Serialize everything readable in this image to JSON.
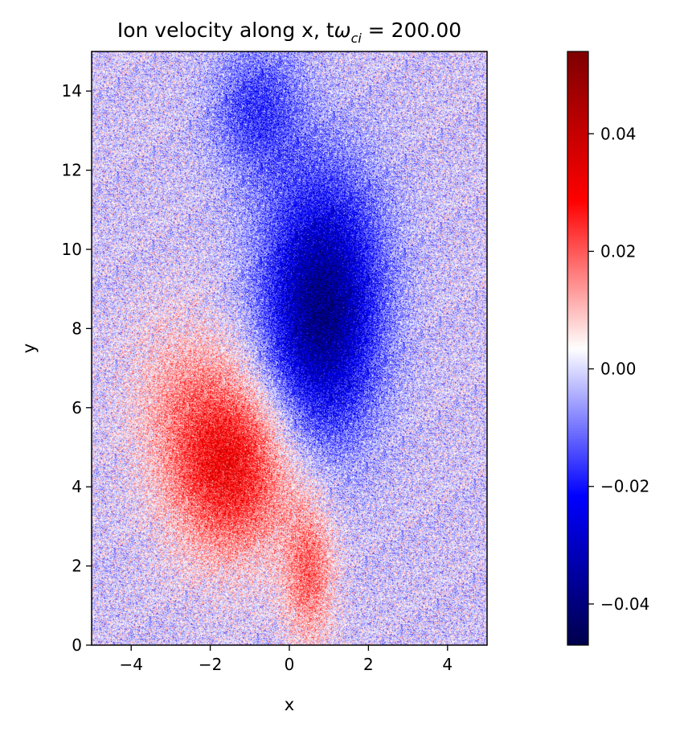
{
  "chart_data": {
    "type": "heatmap",
    "title_main": "Ion velocity along x, t",
    "title_symbol": "ω",
    "title_subscript": "ci",
    "title_value": " = 200.00",
    "xlabel": "x",
    "ylabel": "y",
    "xlim": [
      -5,
      5
    ],
    "ylim": [
      0,
      15
    ],
    "x_ticks": [
      -4,
      -2,
      0,
      2,
      4
    ],
    "x_tick_labels": [
      "−4",
      "−2",
      "0",
      "2",
      "4"
    ],
    "y_ticks": [
      0,
      2,
      4,
      6,
      8,
      10,
      12,
      14
    ],
    "y_tick_labels": [
      "0",
      "2",
      "4",
      "6",
      "8",
      "10",
      "12",
      "14"
    ],
    "colorbar": {
      "colormap": "seismic",
      "vmin": -0.047,
      "vmax": 0.054,
      "ticks": [
        -0.04,
        -0.02,
        0.0,
        0.02,
        0.04
      ],
      "tick_labels": [
        "−0.04",
        "−0.02",
        "0.00",
        "0.02",
        "0.04"
      ]
    },
    "features": [
      {
        "sign": "negative",
        "center": [
          0.8,
          7.8
        ],
        "sigma": [
          1.0,
          2.0
        ],
        "amplitude": -0.03
      },
      {
        "sign": "negative",
        "center": [
          0.9,
          10.0
        ],
        "sigma": [
          1.1,
          1.9
        ],
        "amplitude": -0.016
      },
      {
        "sign": "negative",
        "center": [
          -0.8,
          13.5
        ],
        "sigma": [
          0.8,
          1.2
        ],
        "amplitude": -0.016
      },
      {
        "sign": "positive",
        "center": [
          -1.5,
          4.5
        ],
        "sigma": [
          1.1,
          1.6
        ],
        "amplitude": 0.03
      },
      {
        "sign": "positive",
        "center": [
          0.5,
          1.8
        ],
        "sigma": [
          0.45,
          1.3
        ],
        "amplitude": 0.018
      },
      {
        "sign": "positive",
        "center": [
          -2.8,
          6.5
        ],
        "sigma": [
          1.0,
          1.5
        ],
        "amplitude": 0.008
      }
    ]
  }
}
